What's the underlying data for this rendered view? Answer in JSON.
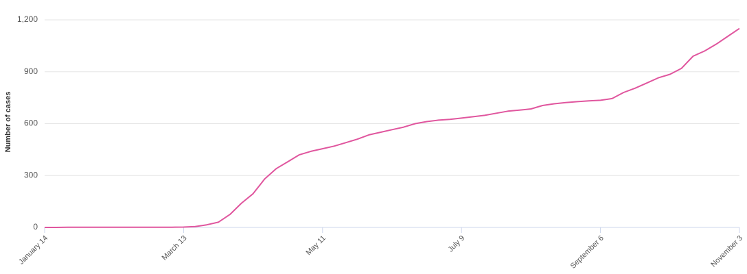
{
  "chart_data": {
    "type": "line",
    "y_label": "Number of cases",
    "categories": [
      "January 14",
      null,
      null,
      null,
      null,
      null,
      null,
      null,
      null,
      null,
      null,
      null,
      "March 13",
      null,
      null,
      null,
      null,
      null,
      null,
      null,
      null,
      null,
      null,
      null,
      "May 11",
      null,
      null,
      null,
      null,
      null,
      null,
      null,
      null,
      null,
      null,
      null,
      "July 9",
      null,
      null,
      null,
      null,
      null,
      null,
      null,
      null,
      null,
      null,
      null,
      "September 6",
      null,
      null,
      null,
      null,
      null,
      null,
      null,
      null,
      null,
      null,
      null,
      "November 3"
    ],
    "values": [
      0,
      0,
      1,
      1,
      1,
      1,
      1,
      1,
      1,
      1,
      1,
      1,
      2,
      5,
      15,
      30,
      75,
      140,
      195,
      280,
      340,
      380,
      420,
      440,
      455,
      470,
      490,
      510,
      535,
      550,
      565,
      580,
      600,
      612,
      620,
      625,
      632,
      640,
      648,
      660,
      672,
      678,
      685,
      705,
      715,
      722,
      727,
      732,
      735,
      745,
      780,
      805,
      835,
      865,
      885,
      920,
      990,
      1020,
      1060,
      1105,
      1150
    ],
    "color": "#e0569e",
    "ylim": [
      0,
      1200
    ],
    "yticks": [
      0,
      300,
      600,
      900,
      {
        "value": 1200,
        "label": "1,200"
      }
    ],
    "grid": true
  }
}
